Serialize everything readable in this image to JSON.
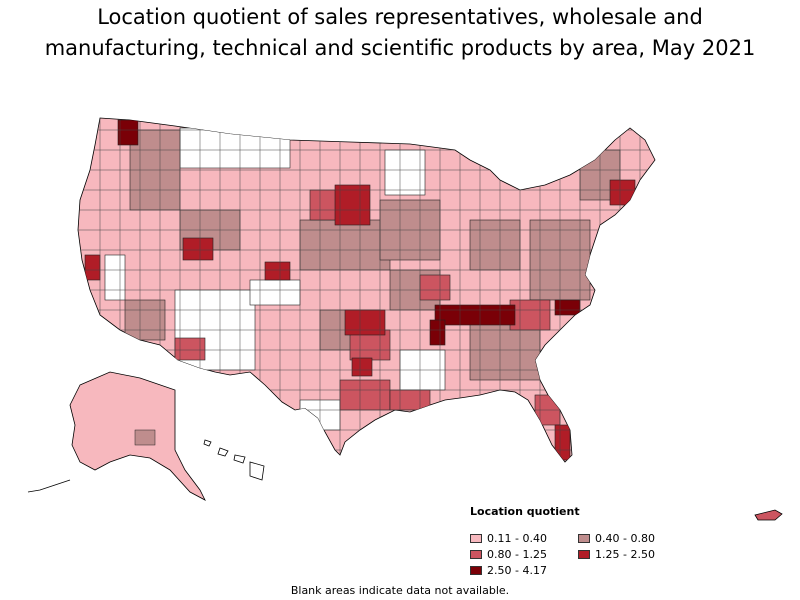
{
  "title": {
    "line1": "Location quotient of sales representatives, wholesale and",
    "line2": "manufacturing, technical and scientific products by area, May 2021"
  },
  "legend": {
    "title": "Location quotient",
    "items": [
      {
        "label": "0.11 - 0.40",
        "color": "#f7b8be"
      },
      {
        "label": "0.40 - 0.80",
        "color": "#bf8d8d"
      },
      {
        "label": "0.80 - 1.25",
        "color": "#cc5560"
      },
      {
        "label": "1.25 - 2.50",
        "color": "#b01d27"
      },
      {
        "label": "2.50 - 4.17",
        "color": "#7a0007"
      }
    ]
  },
  "footnote": "Blank areas indicate data not available."
}
